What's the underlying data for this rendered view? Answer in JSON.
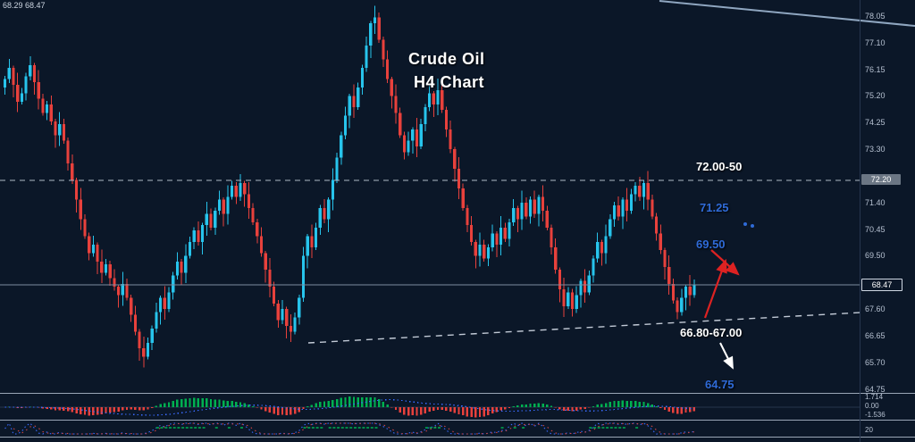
{
  "meta": {
    "ticker_info": "68.29 68.47"
  },
  "title": {
    "line1": "Crude Oil",
    "line2": "H4  Chart"
  },
  "annotations": {
    "resistance_zone": "72.00-50",
    "level_7125": "71.25",
    "level_6950": "69.50",
    "support_zone": "66.80-67.00",
    "target_6475": "64.75"
  },
  "axis": {
    "price_labels": [
      "78.05",
      "77.10",
      "76.15",
      "75.20",
      "74.25",
      "73.30",
      "71.40",
      "70.45",
      "69.50",
      "67.60",
      "66.65",
      "65.70",
      "64.75"
    ],
    "boxes": {
      "level": "72.20",
      "current": "68.47"
    },
    "indicator_labels": [
      "1.714",
      "0.00",
      "-1.536"
    ],
    "oscillator_label": "20"
  },
  "colors": {
    "background": "#0b1728",
    "bull": "#27c4ec",
    "bear": "#e8413c",
    "blue_label": "#2f6bd8",
    "white": "#ffffff",
    "hist_green": "#00b050",
    "hist_red": "#e8413c",
    "signal_blue": "#3a6bff",
    "stoch_red": "#d04545",
    "arrow_red": "#dd2222",
    "axis_text": "#b6c1d1"
  },
  "chart_data": {
    "type": "candlestick",
    "title": "Crude Oil H4 Chart",
    "instrument": "Crude Oil",
    "timeframe": "H4",
    "current_price": 68.47,
    "y_axis": {
      "min": 64.3,
      "max": 78.6,
      "tick_step": 0.95,
      "tick_labels": [
        78.05,
        77.1,
        76.15,
        75.2,
        74.25,
        73.3,
        72.35,
        71.4,
        70.45,
        69.5,
        68.55,
        67.6,
        66.65,
        65.7,
        64.75
      ]
    },
    "levels": {
      "resistance_zone_text": "72.00-50",
      "resistance_line": 72.2,
      "support_zone_text": "66.80-67.00",
      "marked_levels": [
        71.25,
        69.5,
        64.75
      ],
      "support_trendline": {
        "from_price": 66.4,
        "to_price": 67.5
      }
    },
    "indicator_panel": {
      "name": "oscillator-histogram",
      "axis_labels": [
        1.714,
        0.0,
        -1.536
      ]
    },
    "closes": [
      75.8,
      76.2,
      75.6,
      75.0,
      75.3,
      75.9,
      76.3,
      75.7,
      75.1,
      74.6,
      74.9,
      74.3,
      73.8,
      74.2,
      73.6,
      72.8,
      72.2,
      71.5,
      70.8,
      70.2,
      69.6,
      69.9,
      69.3,
      68.9,
      69.2,
      68.7,
      68.4,
      68.1,
      68.5,
      68.0,
      67.4,
      66.8,
      66.2,
      65.9,
      66.4,
      66.9,
      67.5,
      68.0,
      67.6,
      68.2,
      68.8,
      69.3,
      68.9,
      69.5,
      70.0,
      70.4,
      70.0,
      70.6,
      71.0,
      70.5,
      71.1,
      71.5,
      71.0,
      71.6,
      72.0,
      71.6,
      72.1,
      71.7,
      71.2,
      70.7,
      70.2,
      69.6,
      69.0,
      68.4,
      67.8,
      67.2,
      67.6,
      67.0,
      66.8,
      67.3,
      68.0,
      69.5,
      70.2,
      69.8,
      70.5,
      71.2,
      70.8,
      71.5,
      72.2,
      73.0,
      73.8,
      74.5,
      75.2,
      74.8,
      75.5,
      76.2,
      77.0,
      77.8,
      78.0,
      77.2,
      76.5,
      75.8,
      75.2,
      74.6,
      73.8,
      73.2,
      73.6,
      74.0,
      73.4,
      74.2,
      74.8,
      75.3,
      74.9,
      75.4,
      74.7,
      74.0,
      73.3,
      72.6,
      71.9,
      71.2,
      70.6,
      70.0,
      69.5,
      69.9,
      69.4,
      69.8,
      70.3,
      69.9,
      70.5,
      70.1,
      70.7,
      71.2,
      70.8,
      71.4,
      70.9,
      71.5,
      71.0,
      71.6,
      71.1,
      70.5,
      69.8,
      69.0,
      68.3,
      67.7,
      68.2,
      67.6,
      68.1,
      68.6,
      68.2,
      68.8,
      69.4,
      70.0,
      69.6,
      70.2,
      70.8,
      71.3,
      70.9,
      71.5,
      71.1,
      71.7,
      72.0,
      71.6,
      72.1,
      71.5,
      70.9,
      70.3,
      69.7,
      69.1,
      68.5,
      67.9,
      67.5,
      68.0,
      68.4,
      68.1,
      68.47
    ]
  }
}
